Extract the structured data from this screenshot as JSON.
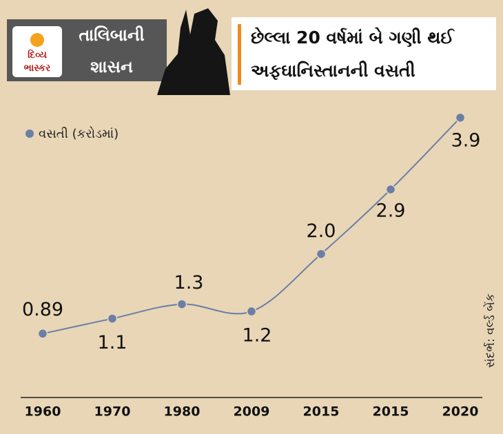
{
  "brand": [
    "દિવ્ય",
    "ભાસ્કર"
  ],
  "series_title": [
    "તાલિબાની",
    "શાસન"
  ],
  "chart_data": {
    "type": "line",
    "title": [
      "છેલ્લા 20 વર્ષમાં બે ગણી થઈ",
      "અફઘાનિસ્તાનની વસતી"
    ],
    "categories": [
      "1960",
      "1970",
      "1980",
      "2009",
      "2015",
      "2015",
      "2020"
    ],
    "series": [
      {
        "name": "વસતી (કરોડમાં)",
        "color": "#6a7ea6",
        "values": [
          0.89,
          1.1,
          1.3,
          1.2,
          2,
          2.9,
          3.9
        ],
        "value_labels": [
          "0.89",
          "1.1",
          "1.3",
          "1.2",
          "2.0",
          "2.9",
          "3.9"
        ]
      }
    ],
    "ylim": [
      0,
      4.1
    ],
    "source": "સંદર્ભ: વર્લ્ડ બેંક"
  }
}
